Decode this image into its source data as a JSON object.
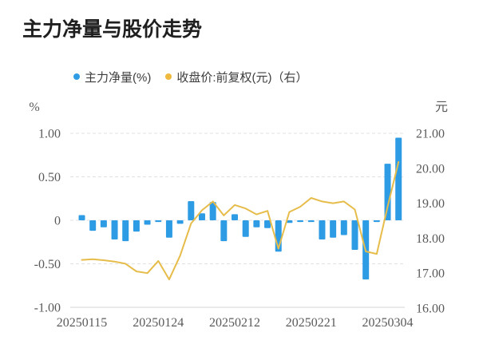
{
  "title": "主力净量与股价走势",
  "legend": {
    "items": [
      {
        "label": "主力净量(%)",
        "color": "#2D9CE5"
      },
      {
        "label": "收盘价:前复权(元)（右）",
        "color": "#EFB93D"
      }
    ]
  },
  "axes": {
    "left": {
      "unit": "%",
      "tick_labels": [
        "1.00",
        "0.50",
        "0",
        "-0.50",
        "-1.00"
      ],
      "tick_values": [
        1,
        0.5,
        0,
        -0.5,
        -1
      ],
      "range": [
        -1,
        1
      ]
    },
    "right": {
      "unit": "元",
      "tick_labels": [
        "21.00",
        "20.00",
        "19.00",
        "18.00",
        "17.00",
        "16.00"
      ],
      "tick_values": [
        21,
        20,
        19,
        18,
        17,
        16
      ],
      "range": [
        16,
        21
      ]
    },
    "x": {
      "tick_labels": [
        "20250115",
        "20250124",
        "20250212",
        "20250221",
        "20250304"
      ],
      "tick_indices": [
        0,
        7,
        14,
        21,
        28
      ]
    }
  },
  "chart_data": {
    "type": "bar",
    "title": "主力净量与股价走势",
    "grid": "horizontal-dashed",
    "legend_position": "top",
    "x": [
      "20250115",
      "20250116",
      "20250117",
      "20250120",
      "20250121",
      "20250122",
      "20250123",
      "20250124",
      "20250127",
      "20250205",
      "20250206",
      "20250207",
      "20250210",
      "20250211",
      "20250212",
      "20250213",
      "20250214",
      "20250217",
      "20250218",
      "20250219",
      "20250220",
      "20250221",
      "20250224",
      "20250225",
      "20250226",
      "20250227",
      "20250228",
      "20250303",
      "20250304",
      "20250305"
    ],
    "series": [
      {
        "name": "主力净量(%)",
        "type": "bar",
        "y_axis": "left",
        "unit": "%",
        "color": "#2D9CE5",
        "ylim": [
          -1,
          1
        ],
        "values": [
          0.06,
          -0.12,
          -0.08,
          -0.22,
          -0.24,
          -0.13,
          -0.05,
          -0.02,
          -0.2,
          -0.04,
          0.22,
          0.08,
          0.21,
          -0.24,
          0.07,
          -0.19,
          -0.08,
          -0.09,
          -0.36,
          -0.03,
          -0.02,
          -0.02,
          -0.22,
          -0.2,
          -0.17,
          -0.34,
          -0.68,
          -0.02,
          0.65,
          0.95
        ]
      },
      {
        "name": "收盘价:前复权(元)（右）",
        "type": "line",
        "y_axis": "right",
        "unit": "元",
        "color": "#E6BC4A",
        "ylim": [
          16,
          21
        ],
        "values": [
          17.38,
          17.4,
          17.37,
          17.33,
          17.27,
          17.05,
          17.0,
          17.35,
          16.82,
          17.5,
          18.42,
          18.8,
          19.05,
          18.65,
          18.95,
          18.85,
          18.68,
          18.78,
          17.7,
          18.75,
          18.9,
          19.15,
          19.05,
          19.0,
          19.05,
          18.82,
          17.62,
          17.55,
          18.9,
          20.18
        ]
      }
    ]
  }
}
